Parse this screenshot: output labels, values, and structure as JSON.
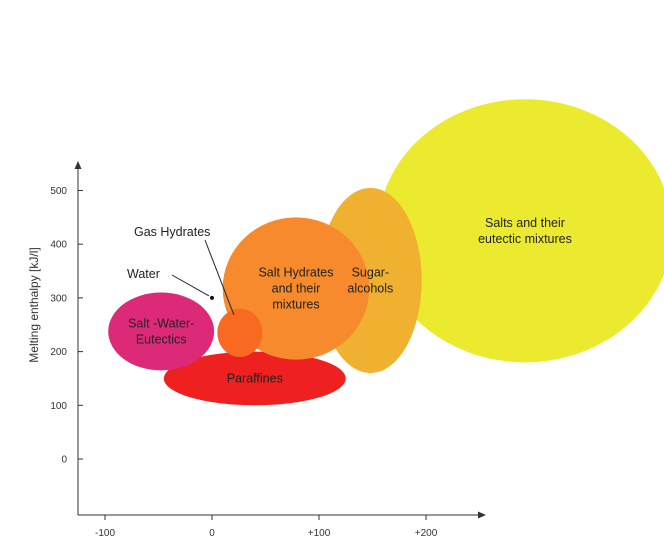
{
  "chart_data": {
    "type": "scatter",
    "title": "",
    "xlabel": "",
    "ylabel": "Melting enthalpy [kJ/l]",
    "x_ticks": [
      "-100",
      "0",
      "+100",
      "+200"
    ],
    "x_tick_values": [
      -100,
      0,
      100,
      200
    ],
    "y_ticks": [
      "0",
      "100",
      "200",
      "300",
      "400",
      "500"
    ],
    "y_tick_values": [
      0,
      100,
      200,
      300,
      400,
      500
    ],
    "grid": false,
    "regions": [
      {
        "name": "Salts and their eutectic mixtures",
        "label_lines": [
          "Salts and their",
          "eutectic mixtures"
        ],
        "x_range": [
          155,
          430
        ],
        "y_range": [
          180,
          670
        ],
        "color": "#EBEA2E"
      },
      {
        "name": "Sugar-alcohols",
        "label_lines": [
          "Sugar-",
          "alcohols"
        ],
        "x_range": [
          100,
          196
        ],
        "y_range": [
          160,
          505
        ],
        "color": "#F0B030"
      },
      {
        "name": "Paraffines",
        "label_lines": [
          "Paraffines"
        ],
        "x_range": [
          -45,
          125
        ],
        "y_range": [
          100,
          200
        ],
        "color": "#EE2020"
      },
      {
        "name": "Salt Hydrates and their mixtures",
        "label_lines": [
          "Salt Hydrates",
          "and their",
          "mixtures"
        ],
        "x_range": [
          10,
          147
        ],
        "y_range": [
          185,
          450
        ],
        "color": "#F68A2C"
      },
      {
        "name": "Salt -Water- Eutectics",
        "label_lines": [
          "Salt -Water-",
          "Eutectics"
        ],
        "x_range": [
          -97,
          2
        ],
        "y_range": [
          165,
          310
        ],
        "color": "#DD2A78"
      },
      {
        "name": "Gas Hydrates",
        "label_lines": [],
        "x_range": [
          5,
          47
        ],
        "y_range": [
          190,
          280
        ],
        "color": "#F86A22"
      }
    ],
    "points": [
      {
        "name": "Water",
        "x": 0,
        "y": 300,
        "color": "#111111"
      }
    ],
    "callouts": [
      {
        "text": "Gas Hydrates",
        "points_to": "Gas Hydrates"
      },
      {
        "text": "Water",
        "points_to": "Water"
      }
    ]
  }
}
